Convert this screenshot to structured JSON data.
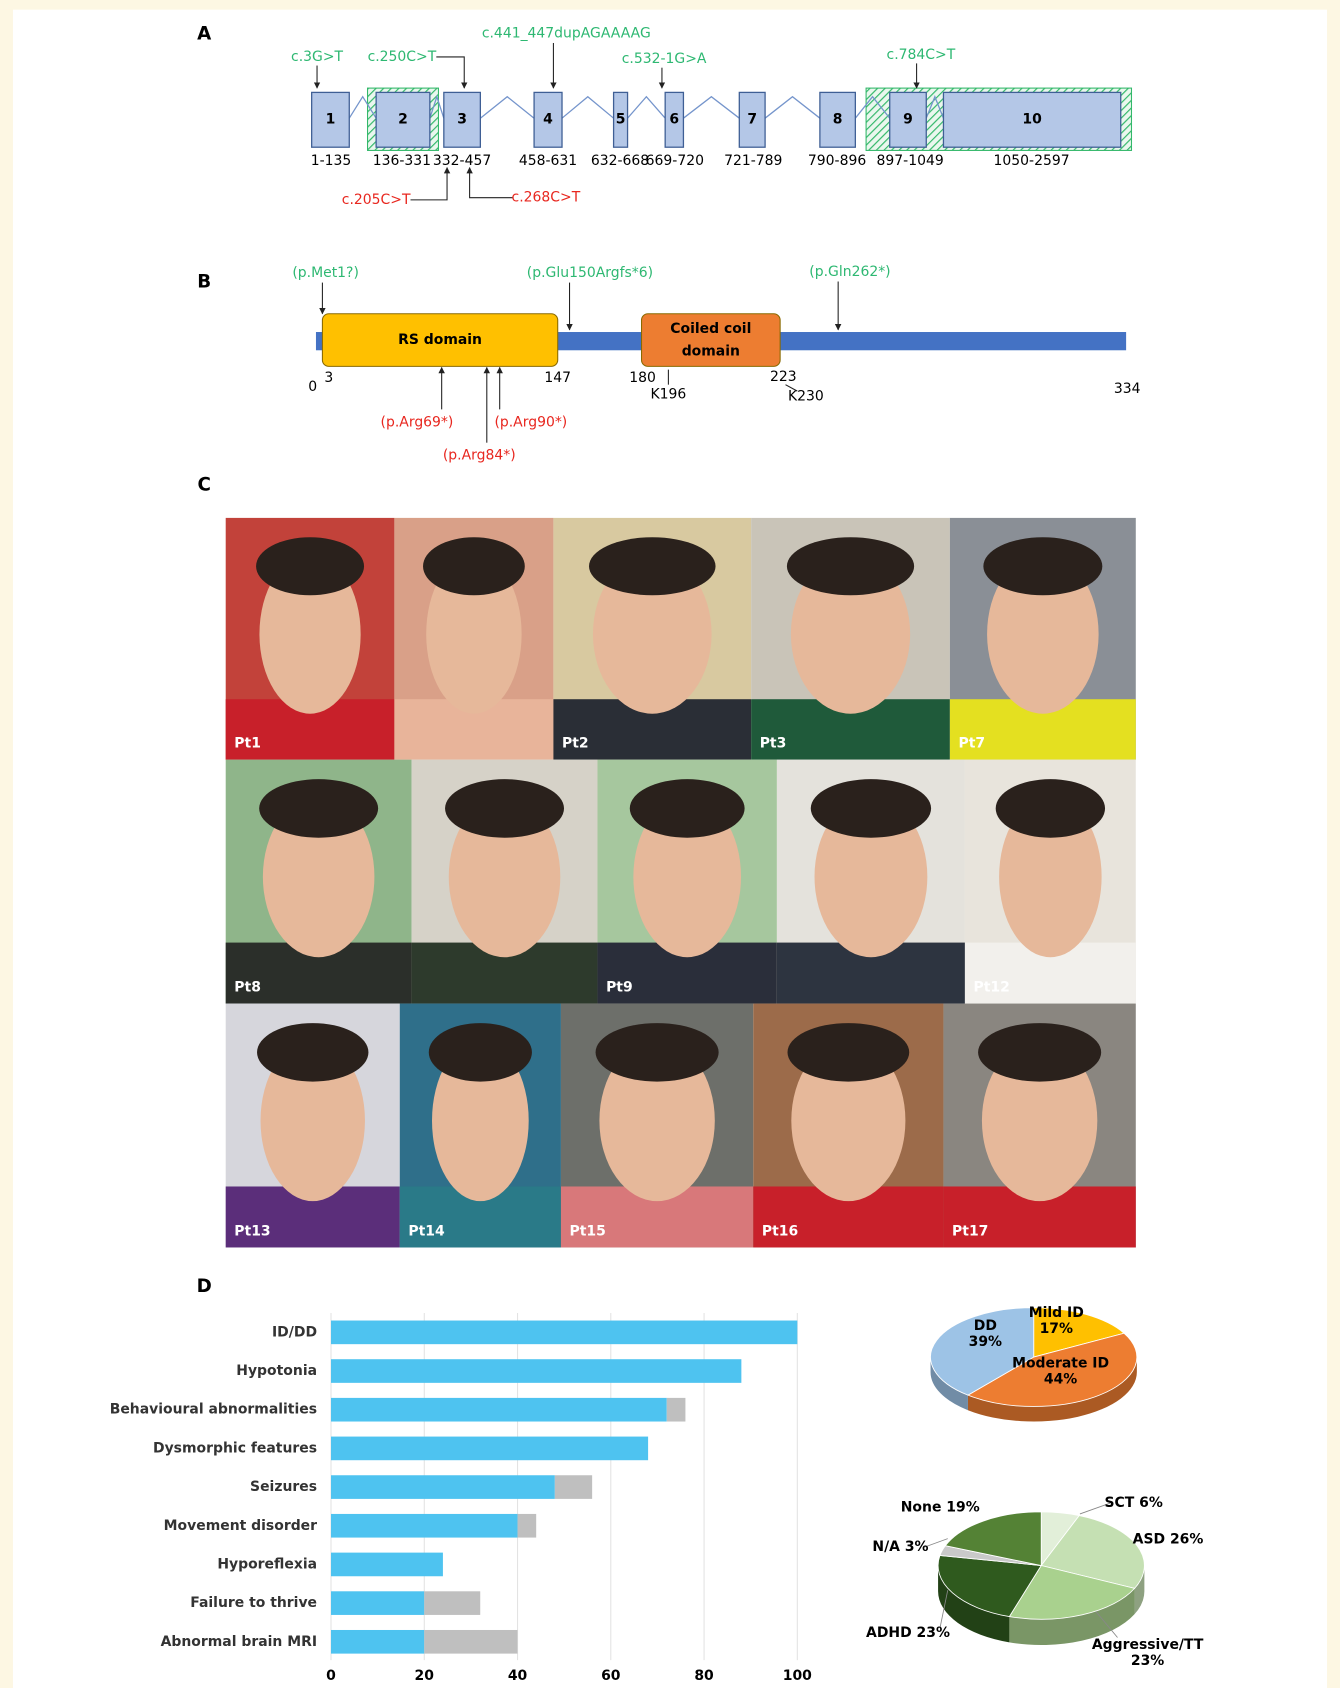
{
  "panel_labels": [
    "A",
    "B",
    "C",
    "D"
  ],
  "gene": {
    "exon_color": "#b4c7e7",
    "hatch_color": "#33b86a",
    "exons": [
      {
        "label": "1",
        "range": "1-135"
      },
      {
        "label": "2",
        "range": "136-331"
      },
      {
        "label": "3",
        "range": "332-457"
      },
      {
        "label": "4",
        "range": "458-631"
      },
      {
        "label": "5",
        "range": "632-668"
      },
      {
        "label": "6",
        "range": "669-720"
      },
      {
        "label": "7",
        "range": "721-789"
      },
      {
        "label": "8",
        "range": "790-896"
      },
      {
        "label": "9",
        "range": "897-1049"
      },
      {
        "label": "10",
        "range": "1050-2597"
      }
    ],
    "variants": [
      {
        "label": "c.3G>T",
        "color": "#2eb872"
      },
      {
        "label": "c.250C>T",
        "color": "#2eb872"
      },
      {
        "label": "c.441_447dupAGAAAAG",
        "color": "#2eb872"
      },
      {
        "label": "c.532-1G>A",
        "color": "#2eb872"
      },
      {
        "label": "c.784C>T",
        "color": "#2eb872"
      },
      {
        "label": "c.205C>T",
        "color": "#e8271f"
      },
      {
        "label": "c.268C>T",
        "color": "#e8271f"
      }
    ]
  },
  "protein": {
    "backbone_color": "#4472c4",
    "domains": [
      {
        "lines": [
          "RS domain"
        ],
        "color": "#ffc000"
      },
      {
        "lines": [
          "Coiled coil",
          "domain"
        ],
        "color": "#ed7d31"
      }
    ],
    "positions": [
      "0",
      "3",
      "147",
      "180",
      "223",
      "334",
      "K196",
      "K230"
    ],
    "variants": [
      {
        "label": "(p.Met1?)",
        "color": "#2eb872"
      },
      {
        "label": "(p.Glu150Argfs*6)",
        "color": "#2eb872"
      },
      {
        "label": "(p.Gln262*)",
        "color": "#2eb872"
      },
      {
        "label": "(p.Arg69*)",
        "color": "#e8271f"
      },
      {
        "label": "(p.Arg84*)",
        "color": "#e8271f"
      },
      {
        "label": "(p.Arg90*)",
        "color": "#e8271f"
      }
    ]
  },
  "photos": {
    "rows": [
      [
        "Pt1",
        null,
        "Pt2",
        "Pt3",
        "Pt7"
      ],
      [
        "Pt8",
        null,
        "Pt9",
        null,
        "Pt12"
      ],
      [
        "Pt13",
        "Pt14",
        "Pt15",
        "Pt16",
        "Pt17"
      ]
    ]
  },
  "chart_data": [
    {
      "type": "bar",
      "orientation": "horizontal",
      "stacked": true,
      "categories": [
        "ID/DD",
        "Hypotonia",
        "Behavioural abnormalities",
        "Dysmorphic features",
        "Seizures",
        "Movement disorder",
        "Hyporeflexia",
        "Failure to thrive",
        "Abnormal brain MRI"
      ],
      "series": [
        {
          "color": "#4ec3f0",
          "values": [
            100,
            88,
            72,
            68,
            48,
            40,
            24,
            20,
            20
          ]
        },
        {
          "color": "#bfbfbf",
          "values": [
            0,
            0,
            4,
            0,
            8,
            4,
            0,
            12,
            20
          ]
        }
      ],
      "xlim": [
        0,
        100
      ],
      "xticks": [
        0,
        20,
        40,
        60,
        80,
        100
      ],
      "grid": true
    },
    {
      "type": "pie",
      "categories": [
        "Mild ID",
        "Moderate ID",
        "DD"
      ],
      "values": [
        17,
        44,
        39
      ],
      "value_labels": [
        "17%",
        "44%",
        "39%"
      ],
      "colors": [
        "#ffc000",
        "#ed7d31",
        "#9dc3e6"
      ]
    },
    {
      "type": "pie",
      "categories": [
        "SCT",
        "ASD",
        "Aggressive/TT",
        "ADHD",
        "N/A",
        "None"
      ],
      "values": [
        6,
        26,
        23,
        23,
        3,
        19
      ],
      "value_labels": [
        "6%",
        "26%",
        "23%",
        "23%",
        "3%",
        "19%"
      ],
      "colors": [
        "#e2efd9",
        "#c5e0b3",
        "#a9d18e",
        "#2f5a1e",
        "#c9c9c9",
        "#548235"
      ]
    }
  ]
}
